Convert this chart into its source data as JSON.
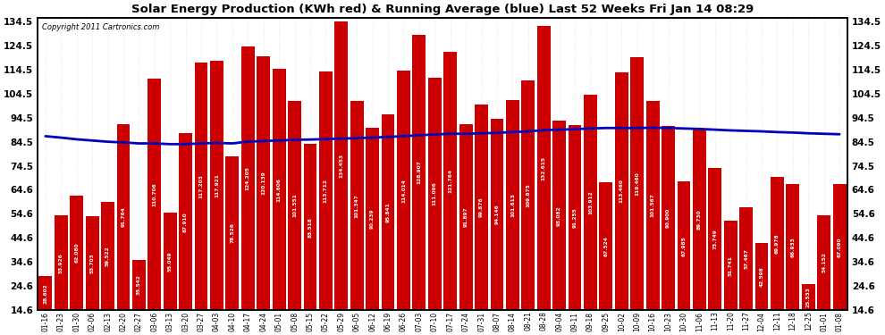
{
  "title": "Solar Energy Production (KWh red) & Running Average (blue) Last 52 Weeks Fri Jan 14 08:29",
  "copyright": "Copyright 2011 Cartronics.com",
  "bar_color": "#cc0000",
  "avg_line_color": "#0000bb",
  "background_color": "#ffffff",
  "plot_bg_color": "#ffffff",
  "ylim": [
    14.6,
    136.0
  ],
  "ymin": 14.6,
  "yticks": [
    14.6,
    24.6,
    34.6,
    44.6,
    54.6,
    64.6,
    74.5,
    84.5,
    94.5,
    104.5,
    114.5,
    124.5,
    134.5
  ],
  "categories": [
    "01-16",
    "01-23",
    "01-30",
    "02-06",
    "02-13",
    "02-20",
    "02-27",
    "03-06",
    "03-13",
    "03-20",
    "03-27",
    "04-03",
    "04-10",
    "04-17",
    "04-24",
    "05-01",
    "05-08",
    "05-15",
    "05-22",
    "05-29",
    "06-05",
    "06-12",
    "06-19",
    "06-26",
    "07-03",
    "07-10",
    "07-17",
    "07-24",
    "07-31",
    "08-07",
    "08-14",
    "08-21",
    "08-28",
    "09-04",
    "09-11",
    "09-18",
    "09-25",
    "10-02",
    "10-09",
    "10-16",
    "10-23",
    "10-30",
    "11-06",
    "11-13",
    "11-20",
    "11-27",
    "12-04",
    "12-11",
    "12-18",
    "12-25",
    "01-01",
    "01-08"
  ],
  "values": [
    28.602,
    53.926,
    62.08,
    53.703,
    59.522,
    91.764,
    35.542,
    110.706,
    55.049,
    87.91,
    117.203,
    117.921,
    78.526,
    124.205,
    120.139,
    114.606,
    101.551,
    83.518,
    113.712,
    134.453,
    101.347,
    90.239,
    95.841,
    114.014,
    128.907,
    111.096,
    121.764,
    91.897,
    99.876,
    94.146,
    101.613,
    109.875,
    132.615,
    93.082,
    91.255,
    103.912,
    67.524,
    113.46,
    119.46,
    101.567,
    90.9,
    67.985,
    89.73,
    73.749,
    51.741,
    57.467,
    42.598,
    69.978,
    66.933,
    25.533,
    54.152,
    67.09
  ],
  "running_avg": [
    86.8,
    86.2,
    85.5,
    85.0,
    84.5,
    84.2,
    83.8,
    83.8,
    83.5,
    83.5,
    83.8,
    84.0,
    83.8,
    84.5,
    84.8,
    85.0,
    85.3,
    85.4,
    85.6,
    85.8,
    86.0,
    86.2,
    86.5,
    86.8,
    87.2,
    87.5,
    87.8,
    87.8,
    88.0,
    88.2,
    88.5,
    88.8,
    89.3,
    89.5,
    89.7,
    90.0,
    90.2,
    90.2,
    90.2,
    90.3,
    90.2,
    90.0,
    89.8,
    89.5,
    89.2,
    89.0,
    88.8,
    88.5,
    88.3,
    88.0,
    87.8,
    87.6
  ]
}
